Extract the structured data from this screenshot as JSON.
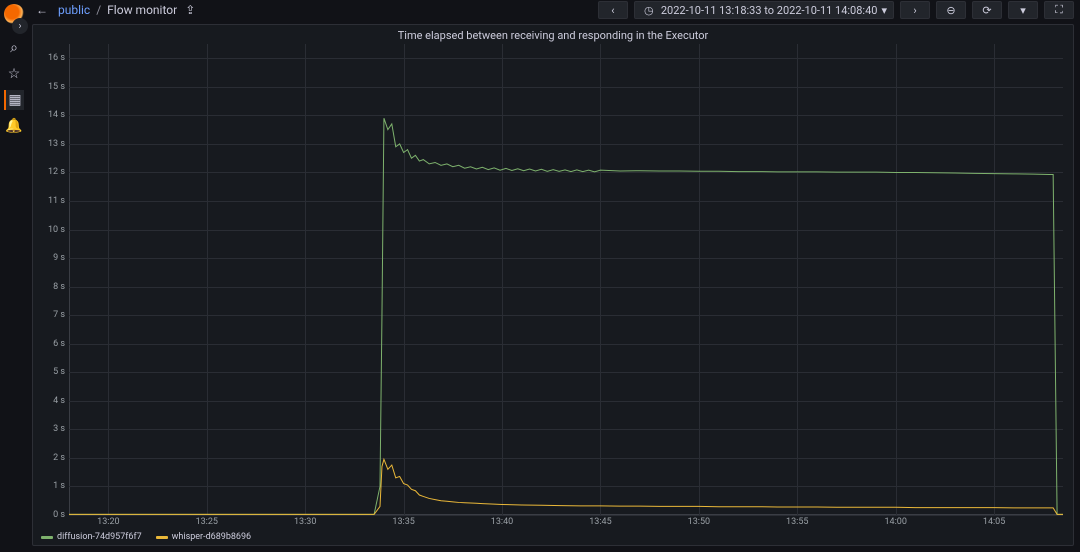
{
  "sidebar": {
    "items": [
      {
        "name": "search-icon",
        "glyph": "⌕"
      },
      {
        "name": "star-icon",
        "glyph": "☆"
      },
      {
        "name": "dashboards-icon",
        "glyph": "▦",
        "active": true
      },
      {
        "name": "alerting-icon",
        "glyph": "🔔"
      }
    ]
  },
  "header": {
    "folder": "public",
    "dashboard": "Flow monitor",
    "sep": "/",
    "time_range": {
      "text": "2022-10-11 13:18:33 to 2022-10-11 14:08:40",
      "dropdown": "▾"
    },
    "icons": {
      "back": "←",
      "share": "⇪",
      "prev": "‹",
      "next": "›",
      "clock": "◷",
      "zoom_out": "⊖",
      "refresh": "⟳",
      "refresh_dd": "▾",
      "tv": "⛶"
    }
  },
  "panel": {
    "title": "Time elapsed between receiving and responding in the Executor",
    "chart": {
      "type": "line",
      "background_color": "#171a1f",
      "grid_color": "#2a2d34",
      "axis_color": "#3a3d44",
      "text_color": "#9aa0a6",
      "y": {
        "min": 0,
        "max": 16.5,
        "unit": "s",
        "ticks": [
          0,
          1,
          2,
          3,
          4,
          5,
          6,
          7,
          8,
          9,
          10,
          11,
          12,
          13,
          14,
          15,
          16
        ]
      },
      "x": {
        "min": 798,
        "max": 848.5,
        "ticks": [
          {
            "v": 800,
            "label": "13:20"
          },
          {
            "v": 805,
            "label": "13:25"
          },
          {
            "v": 810,
            "label": "13:30"
          },
          {
            "v": 815,
            "label": "13:35"
          },
          {
            "v": 820,
            "label": "13:40"
          },
          {
            "v": 825,
            "label": "13:45"
          },
          {
            "v": 830,
            "label": "13:50"
          },
          {
            "v": 835,
            "label": "13:55"
          },
          {
            "v": 840,
            "label": "14:00"
          },
          {
            "v": 845,
            "label": "14:05"
          }
        ]
      },
      "series": [
        {
          "name": "diffusion-74d957f6f7",
          "color": "#7eb26d",
          "line_width": 1,
          "points": [
            [
              798,
              0.02
            ],
            [
              800,
              0.02
            ],
            [
              805,
              0.02
            ],
            [
              810,
              0.02
            ],
            [
              812,
              0.02
            ],
            [
              813,
              0.02
            ],
            [
              813.5,
              0.02
            ],
            [
              813.8,
              1.0
            ],
            [
              813.9,
              7.0
            ],
            [
              814.0,
              13.9
            ],
            [
              814.2,
              13.5
            ],
            [
              814.4,
              13.7
            ],
            [
              814.6,
              12.9
            ],
            [
              814.8,
              13.0
            ],
            [
              815.0,
              12.7
            ],
            [
              815.2,
              12.8
            ],
            [
              815.4,
              12.5
            ],
            [
              815.6,
              12.6
            ],
            [
              815.8,
              12.4
            ],
            [
              816.0,
              12.45
            ],
            [
              816.3,
              12.3
            ],
            [
              816.6,
              12.35
            ],
            [
              816.9,
              12.25
            ],
            [
              817.2,
              12.3
            ],
            [
              817.5,
              12.2
            ],
            [
              817.8,
              12.25
            ],
            [
              818.1,
              12.15
            ],
            [
              818.4,
              12.2
            ],
            [
              818.7,
              12.12
            ],
            [
              819.0,
              12.18
            ],
            [
              819.3,
              12.1
            ],
            [
              819.6,
              12.16
            ],
            [
              819.9,
              12.08
            ],
            [
              820.2,
              12.14
            ],
            [
              820.5,
              12.07
            ],
            [
              820.8,
              12.13
            ],
            [
              821.1,
              12.06
            ],
            [
              821.4,
              12.12
            ],
            [
              821.7,
              12.05
            ],
            [
              822.0,
              12.11
            ],
            [
              822.3,
              12.04
            ],
            [
              822.6,
              12.1
            ],
            [
              822.9,
              12.04
            ],
            [
              823.2,
              12.09
            ],
            [
              823.5,
              12.03
            ],
            [
              823.8,
              12.09
            ],
            [
              824.1,
              12.03
            ],
            [
              824.4,
              12.08
            ],
            [
              824.7,
              12.02
            ],
            [
              825.0,
              12.08
            ],
            [
              826,
              12.05
            ],
            [
              827,
              12.06
            ],
            [
              828,
              12.05
            ],
            [
              829,
              12.05
            ],
            [
              830,
              12.04
            ],
            [
              831,
              12.04
            ],
            [
              832,
              12.03
            ],
            [
              833,
              12.03
            ],
            [
              834,
              12.02
            ],
            [
              835,
              12.02
            ],
            [
              836,
              12.02
            ],
            [
              837,
              12.01
            ],
            [
              838,
              12.01
            ],
            [
              839,
              12.01
            ],
            [
              840,
              12.0
            ],
            [
              841,
              12.0
            ],
            [
              842,
              11.99
            ],
            [
              843,
              11.98
            ],
            [
              844,
              11.97
            ],
            [
              845,
              11.96
            ],
            [
              846,
              11.95
            ],
            [
              847,
              11.94
            ],
            [
              847.8,
              11.93
            ],
            [
              848.0,
              11.93
            ],
            [
              848.2,
              0.02
            ],
            [
              848.5,
              0.02
            ]
          ]
        },
        {
          "name": "whisper-d689b8696",
          "color": "#eab839",
          "line_width": 1,
          "points": [
            [
              798,
              0.02
            ],
            [
              800,
              0.02
            ],
            [
              805,
              0.02
            ],
            [
              810,
              0.02
            ],
            [
              812,
              0.02
            ],
            [
              813,
              0.02
            ],
            [
              813.5,
              0.02
            ],
            [
              813.8,
              0.3
            ],
            [
              813.9,
              1.7
            ],
            [
              814.0,
              1.95
            ],
            [
              814.2,
              1.6
            ],
            [
              814.4,
              1.75
            ],
            [
              814.6,
              1.3
            ],
            [
              814.8,
              1.35
            ],
            [
              815.0,
              1.1
            ],
            [
              815.2,
              1.05
            ],
            [
              815.4,
              0.9
            ],
            [
              815.6,
              0.85
            ],
            [
              815.8,
              0.7
            ],
            [
              816.0,
              0.65
            ],
            [
              816.3,
              0.58
            ],
            [
              816.6,
              0.54
            ],
            [
              816.9,
              0.5
            ],
            [
              817.2,
              0.48
            ],
            [
              817.5,
              0.46
            ],
            [
              817.8,
              0.44
            ],
            [
              818.1,
              0.43
            ],
            [
              818.4,
              0.42
            ],
            [
              818.7,
              0.41
            ],
            [
              819.0,
              0.4
            ],
            [
              819.3,
              0.39
            ],
            [
              819.6,
              0.38
            ],
            [
              820,
              0.37
            ],
            [
              821,
              0.35
            ],
            [
              822,
              0.34
            ],
            [
              823,
              0.33
            ],
            [
              824,
              0.32
            ],
            [
              825,
              0.32
            ],
            [
              826,
              0.31
            ],
            [
              827,
              0.31
            ],
            [
              828,
              0.3
            ],
            [
              829,
              0.3
            ],
            [
              830,
              0.3
            ],
            [
              831,
              0.29
            ],
            [
              832,
              0.29
            ],
            [
              833,
              0.29
            ],
            [
              834,
              0.28
            ],
            [
              835,
              0.28
            ],
            [
              836,
              0.28
            ],
            [
              837,
              0.27
            ],
            [
              838,
              0.27
            ],
            [
              839,
              0.27
            ],
            [
              840,
              0.27
            ],
            [
              841,
              0.26
            ],
            [
              842,
              0.26
            ],
            [
              843,
              0.26
            ],
            [
              844,
              0.26
            ],
            [
              845,
              0.26
            ],
            [
              846,
              0.25
            ],
            [
              847,
              0.25
            ],
            [
              847.8,
              0.25
            ],
            [
              848.0,
              0.25
            ],
            [
              848.2,
              0.02
            ],
            [
              848.5,
              0.02
            ]
          ]
        }
      ],
      "legend": [
        {
          "label": "diffusion-74d957f6f7",
          "color": "#7eb26d"
        },
        {
          "label": "whisper-d689b8696",
          "color": "#eab839"
        }
      ]
    }
  }
}
